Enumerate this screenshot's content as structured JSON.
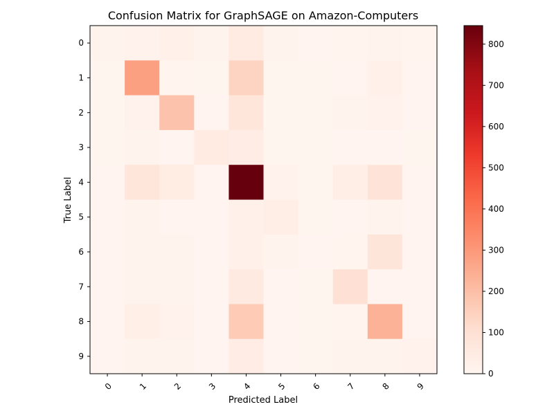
{
  "chart_data": {
    "type": "heatmap",
    "title": "Confusion Matrix for GraphSAGE on Amazon-Computers",
    "xlabel": "Predicted Label",
    "ylabel": "True Label",
    "x_categories": [
      "0",
      "1",
      "2",
      "3",
      "4",
      "5",
      "6",
      "7",
      "8",
      "9"
    ],
    "y_categories": [
      "0",
      "1",
      "2",
      "3",
      "4",
      "5",
      "6",
      "7",
      "8",
      "9"
    ],
    "colormap": "Reds",
    "color_range": [
      0,
      845
    ],
    "colorbar_ticks": [
      0,
      100,
      200,
      300,
      400,
      500,
      600,
      700,
      800
    ],
    "matrix": [
      [
        10,
        18,
        25,
        12,
        50,
        8,
        3,
        6,
        12,
        6
      ],
      [
        2,
        280,
        6,
        2,
        140,
        2,
        2,
        4,
        22,
        4
      ],
      [
        2,
        18,
        190,
        3,
        75,
        2,
        2,
        10,
        18,
        4
      ],
      [
        2,
        10,
        5,
        48,
        40,
        2,
        2,
        3,
        4,
        2
      ],
      [
        4,
        75,
        45,
        3,
        845,
        18,
        2,
        35,
        85,
        4
      ],
      [
        3,
        8,
        5,
        3,
        20,
        35,
        2,
        5,
        8,
        3
      ],
      [
        3,
        12,
        8,
        3,
        25,
        8,
        3,
        6,
        80,
        3
      ],
      [
        3,
        12,
        12,
        3,
        55,
        5,
        2,
        100,
        3,
        3
      ],
      [
        3,
        30,
        18,
        3,
        165,
        5,
        2,
        6,
        235,
        4
      ],
      [
        5,
        8,
        8,
        3,
        38,
        4,
        2,
        8,
        12,
        18
      ]
    ]
  }
}
